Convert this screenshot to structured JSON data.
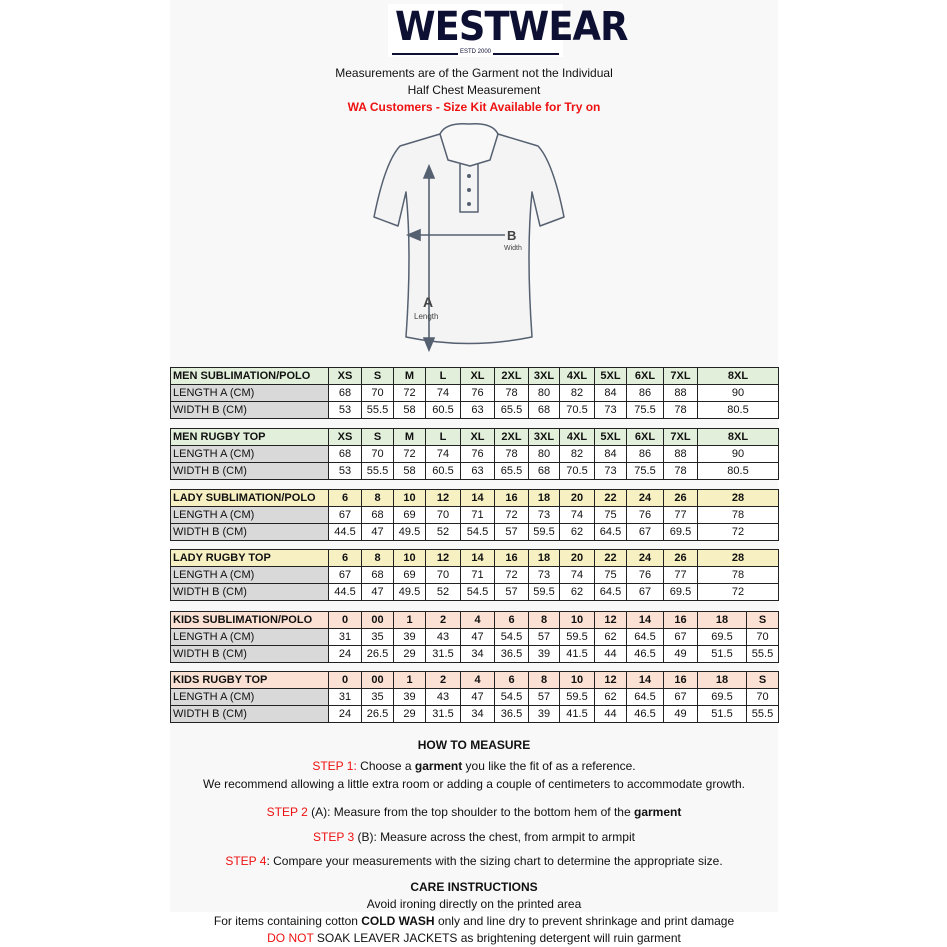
{
  "logo": {
    "text": "WESTWEAR",
    "est": "ESTD 2000"
  },
  "intro": {
    "line1": "Measurements are of the Garment not the Individual",
    "line2": "Half Chest Measurement",
    "line3": "WA Customers - Size Kit Available for Try on"
  },
  "diagram": {
    "b_label": "B",
    "b_caption": "Width",
    "a_label": "A",
    "a_caption": "Length"
  },
  "colors": {
    "men": "#e2efda",
    "lady": "#f6f0c2",
    "kids": "#fbe1d4",
    "label_col": "#d9d9d9",
    "accent_red": "#ee1111"
  },
  "tables": [
    {
      "title": "MEN SUBLIMATION/POLO",
      "theme": "men",
      "rows_labels": [
        "LENGTH A (CM)",
        "WIDTH B (CM)"
      ],
      "sizes": [
        "XS",
        "S",
        "M",
        "L",
        "XL",
        "2XL",
        "3XL",
        "4XL",
        "5XL",
        "6XL",
        "7XL",
        "8XL"
      ],
      "length": [
        "68",
        "70",
        "72",
        "74",
        "76",
        "78",
        "80",
        "82",
        "84",
        "86",
        "88",
        "90"
      ],
      "width": [
        "53",
        "55.5",
        "58",
        "60.5",
        "63",
        "65.5",
        "68",
        "70.5",
        "73",
        "75.5",
        "78",
        "80.5"
      ]
    },
    {
      "title": "MEN RUGBY TOP",
      "theme": "men",
      "rows_labels": [
        "LENGTH A (CM)",
        "WIDTH B (CM)"
      ],
      "sizes": [
        "XS",
        "S",
        "M",
        "L",
        "XL",
        "2XL",
        "3XL",
        "4XL",
        "5XL",
        "6XL",
        "7XL",
        "8XL"
      ],
      "length": [
        "68",
        "70",
        "72",
        "74",
        "76",
        "78",
        "80",
        "82",
        "84",
        "86",
        "88",
        "90"
      ],
      "width": [
        "53",
        "55.5",
        "58",
        "60.5",
        "63",
        "65.5",
        "68",
        "70.5",
        "73",
        "75.5",
        "78",
        "80.5"
      ]
    },
    {
      "title": "LADY SUBLIMATION/POLO",
      "theme": "lady",
      "rows_labels": [
        "LENGTH A (CM)",
        "WIDTH B (CM)"
      ],
      "sizes": [
        "6",
        "8",
        "10",
        "12",
        "14",
        "16",
        "18",
        "20",
        "22",
        "24",
        "26",
        "28"
      ],
      "length": [
        "67",
        "68",
        "69",
        "70",
        "71",
        "72",
        "73",
        "74",
        "75",
        "76",
        "77",
        "78"
      ],
      "width": [
        "44.5",
        "47",
        "49.5",
        "52",
        "54.5",
        "57",
        "59.5",
        "62",
        "64.5",
        "67",
        "69.5",
        "72"
      ]
    },
    {
      "title": "LADY RUGBY TOP",
      "theme": "lady",
      "rows_labels": [
        "LENGTH A (CM)",
        "WIDTH B (CM)"
      ],
      "sizes": [
        "6",
        "8",
        "10",
        "12",
        "14",
        "16",
        "18",
        "20",
        "22",
        "24",
        "26",
        "28"
      ],
      "length": [
        "67",
        "68",
        "69",
        "70",
        "71",
        "72",
        "73",
        "74",
        "75",
        "76",
        "77",
        "78"
      ],
      "width": [
        "44.5",
        "47",
        "49.5",
        "52",
        "54.5",
        "57",
        "59.5",
        "62",
        "64.5",
        "67",
        "69.5",
        "72"
      ]
    },
    {
      "title": "KIDS SUBLIMATION/POLO",
      "theme": "kids",
      "rows_labels": [
        "LENGTH A (CM)",
        "WIDTH B (CM)"
      ],
      "sizes": [
        "0",
        "00",
        "1",
        "2",
        "4",
        "6",
        "8",
        "10",
        "12",
        "14",
        "16",
        "18",
        "S"
      ],
      "length": [
        "31",
        "35",
        "39",
        "43",
        "47",
        "54.5",
        "57",
        "59.5",
        "62",
        "64.5",
        "67",
        "69.5",
        "70"
      ],
      "width": [
        "24",
        "26.5",
        "29",
        "31.5",
        "34",
        "36.5",
        "39",
        "41.5",
        "44",
        "46.5",
        "49",
        "51.5",
        "55.5"
      ]
    },
    {
      "title": "KIDS RUGBY TOP",
      "theme": "kids",
      "rows_labels": [
        "LENGTH A (CM)",
        "WIDTH B (CM)"
      ],
      "sizes": [
        "0",
        "00",
        "1",
        "2",
        "4",
        "6",
        "8",
        "10",
        "12",
        "14",
        "16",
        "18",
        "S"
      ],
      "length": [
        "31",
        "35",
        "39",
        "43",
        "47",
        "54.5",
        "57",
        "59.5",
        "62",
        "64.5",
        "67",
        "69.5",
        "70"
      ],
      "width": [
        "24",
        "26.5",
        "29",
        "31.5",
        "34",
        "36.5",
        "39",
        "41.5",
        "44",
        "46.5",
        "49",
        "51.5",
        "55.5"
      ]
    }
  ],
  "how_to": {
    "title": "HOW TO MEASURE",
    "step1": {
      "tag": "STEP 1:",
      "a": " Choose a ",
      "bold": "garment",
      "b": " you like the fit of as a reference."
    },
    "step1_note": "We recommend allowing a little extra room or adding a couple of centimeters to accommodate growth.",
    "step2": {
      "tag": "STEP 2",
      "a": " (A): Measure from the top shoulder to the bottom hem of the ",
      "bold": "garment"
    },
    "step3": {
      "tag": "STEP 3",
      "a": " (B): Measure across the chest, from armpit to armpit"
    },
    "step4": {
      "tag": "STEP 4",
      "a": ": Compare your measurements with the sizing chart to determine the appropriate size."
    }
  },
  "care": {
    "title": "CARE INSTRUCTIONS",
    "line1": "Avoid ironing directly on the printed area",
    "line2": {
      "a": "For items containing cotton ",
      "bold": "COLD WASH",
      "b": " only and line dry to prevent shrinkage and print damage"
    },
    "line3": {
      "tag": "DO NOT",
      "a": " SOAK LEAVER JACKETS as brightening detergent will ruin garment"
    }
  }
}
